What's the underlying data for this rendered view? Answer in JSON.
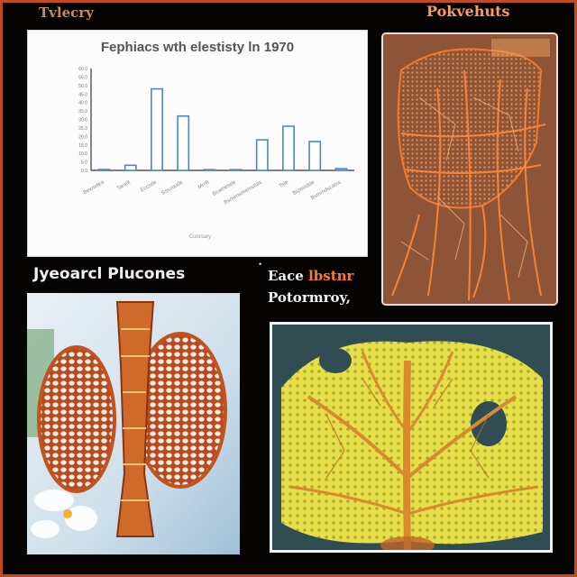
{
  "labels": {
    "top_left": "Tvlecry",
    "top_right": "Pokvehuts",
    "mid_left": "Jyeoarcl Plucones",
    "mid_right_a": "Eace",
    "mid_right_b": " lbstnr",
    "mid_right_line2": "Potormroy,"
  },
  "chart_data": {
    "type": "bar",
    "title": "Fephiacs wth elestisty ln 1970",
    "xlabel": "Cunrsary",
    "ylabel": "",
    "categories": [
      "Bexmdea",
      "Tanelt",
      "Eccsde",
      "Ssssoude",
      "Mrrilt",
      "Bsamesde",
      "Bsmimsmemsttas",
      "Tsle",
      "Bsmnidde",
      "Bsmmdscotss"
    ],
    "values": [
      0.5,
      3,
      48,
      32,
      0,
      0,
      18,
      26,
      17,
      1
    ],
    "ylim": [
      0,
      60
    ],
    "ytick_labels": [
      "60.0",
      "55.0",
      "50.0",
      "45.0",
      "40.0",
      "35.0",
      "30.0",
      "25.0",
      "20.0",
      "15.0",
      "10.0",
      "5.0",
      "0.0"
    ],
    "bar_color": "#4a86c8",
    "grid": false
  },
  "colors": {
    "frame": "#c24a22",
    "accent_orange": "#ff7a2f",
    "leaf_yellow": "#e8de48"
  }
}
